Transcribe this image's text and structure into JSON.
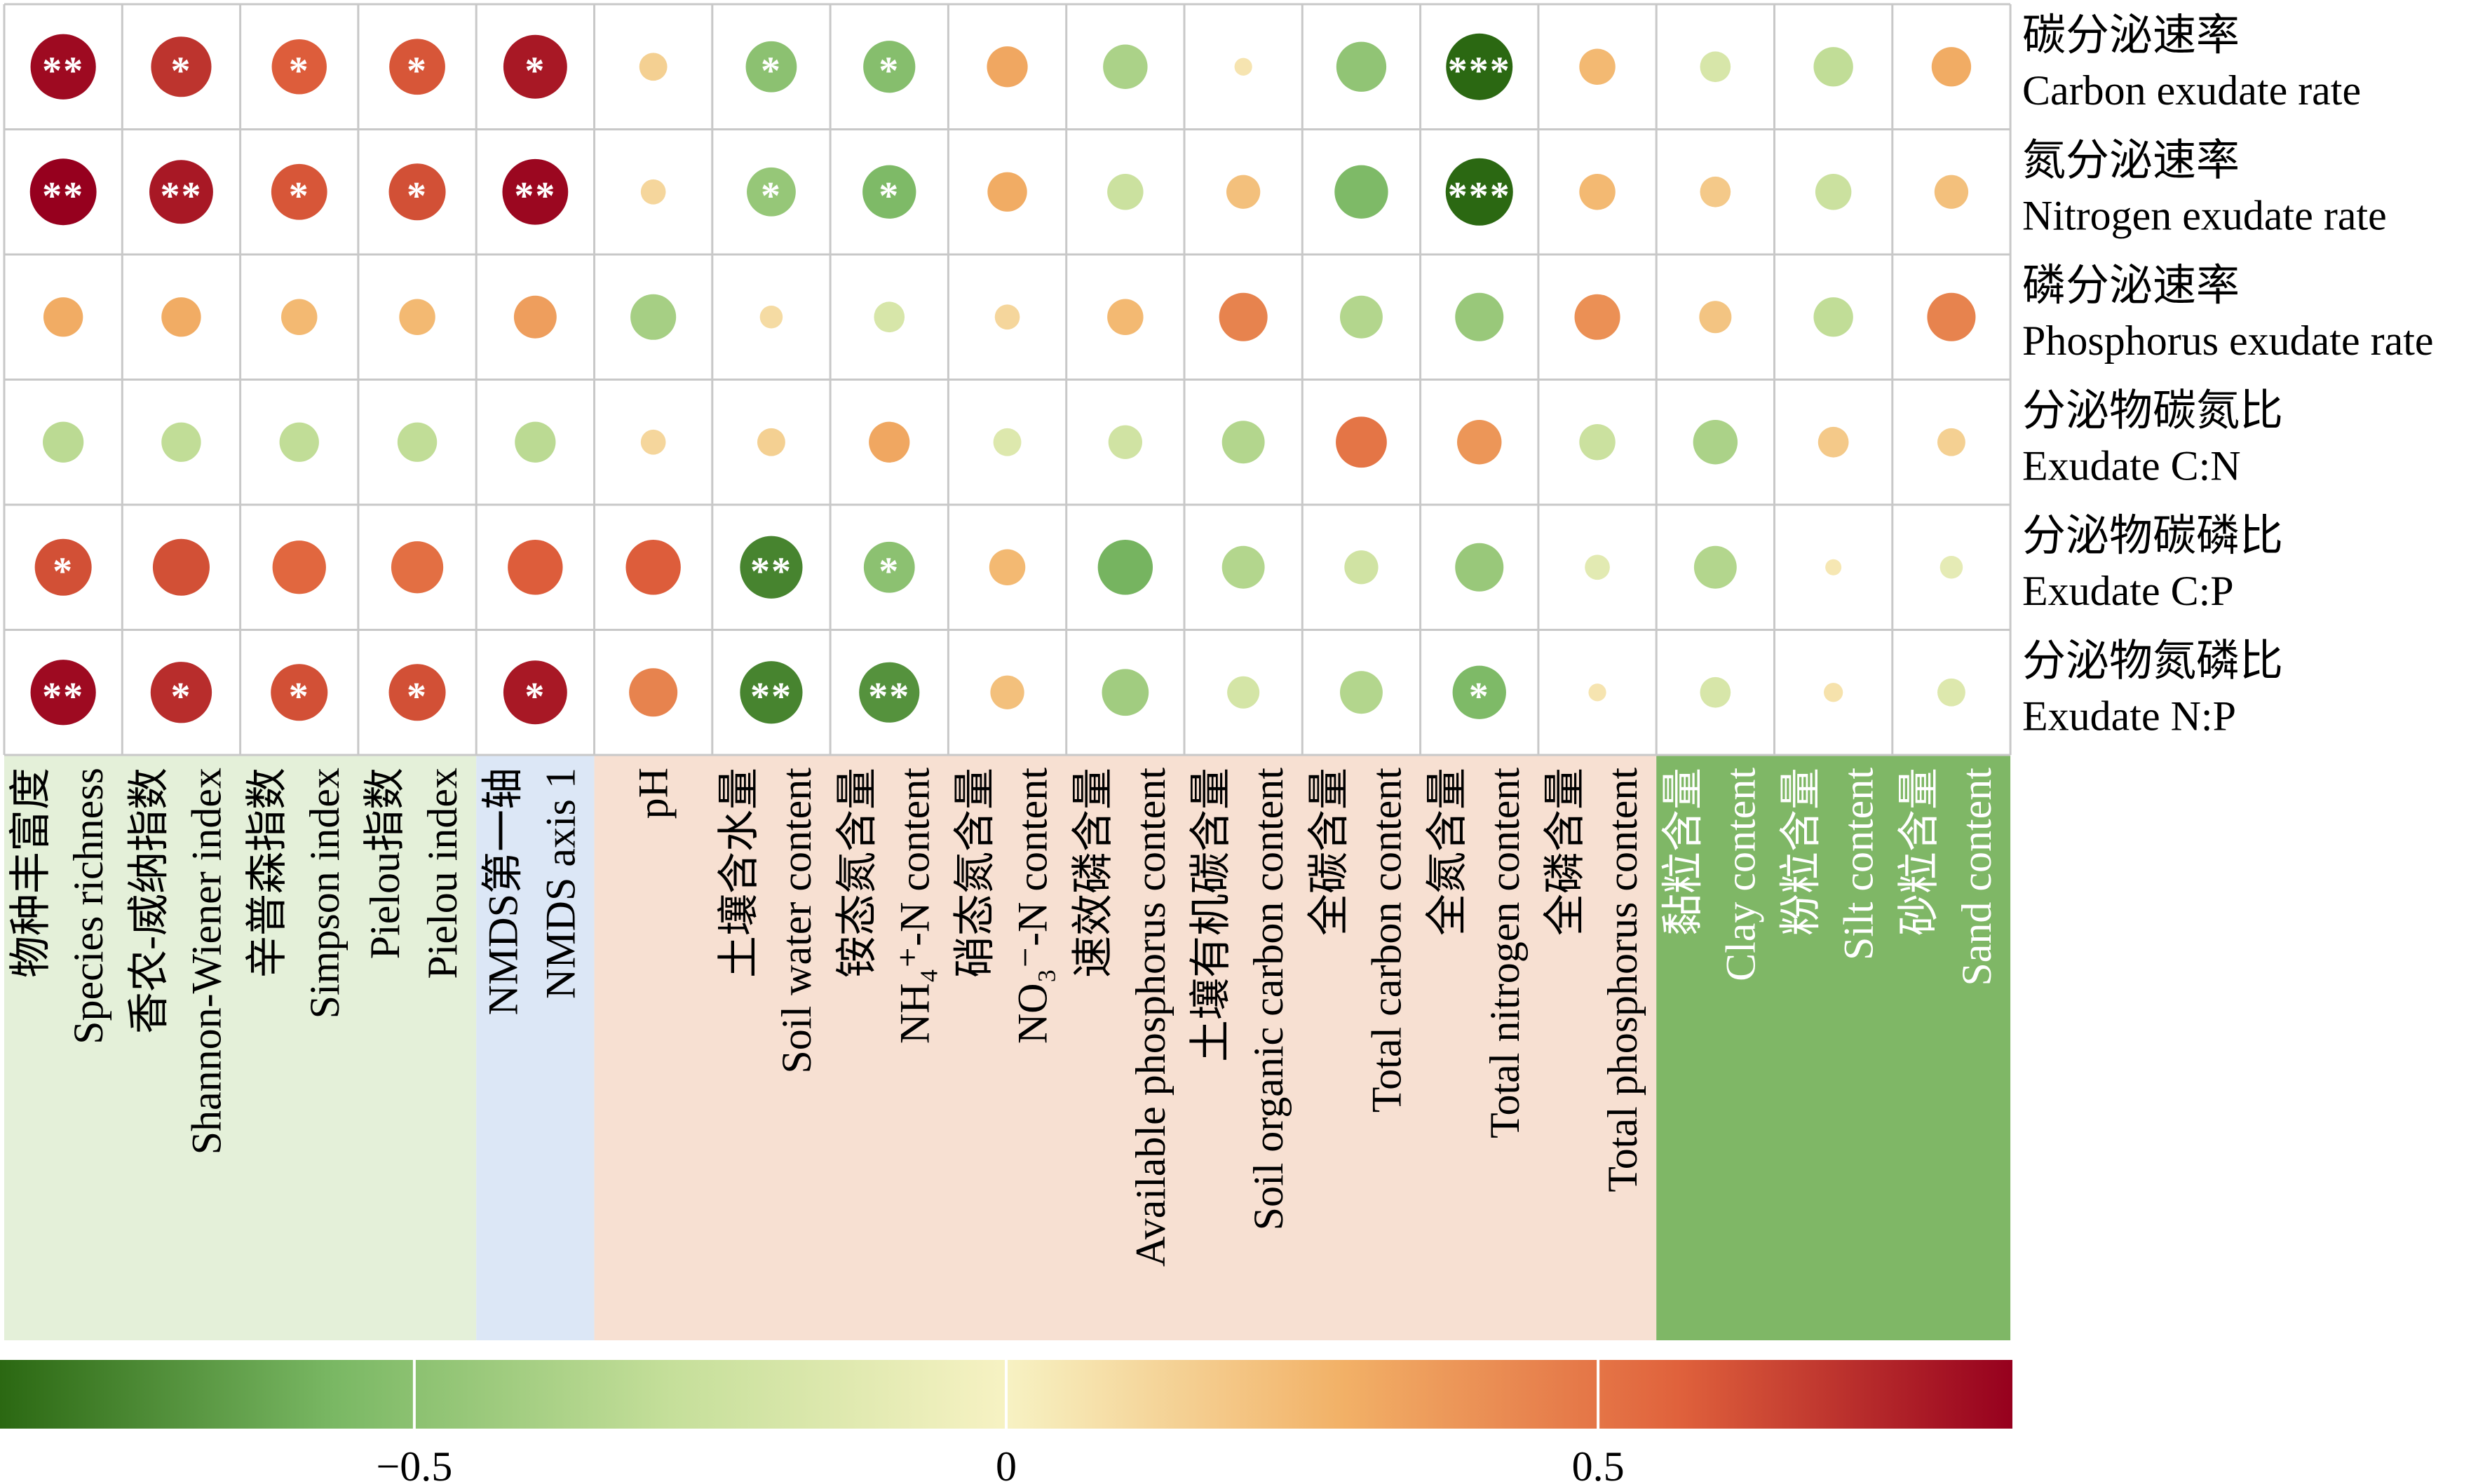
{
  "chart_data": {
    "type": "heatmap",
    "title": "",
    "value_range": [
      -0.85,
      0.85
    ],
    "rows": [
      {
        "zh": "碳分泌速率",
        "en": "Carbon exudate rate"
      },
      {
        "zh": "氮分泌速率",
        "en": "Nitrogen exudate rate"
      },
      {
        "zh": "磷分泌速率",
        "en": "Phosphorus exudate rate"
      },
      {
        "zh": "分泌物碳氮比",
        "en": "Exudate C:N"
      },
      {
        "zh": "分泌物碳磷比",
        "en": "Exudate C:P"
      },
      {
        "zh": "分泌物氮磷比",
        "en": "Exudate N:P"
      }
    ],
    "columns": [
      {
        "zh": "物种丰富度",
        "en": "Species richness",
        "group": "diversity"
      },
      {
        "zh": "香农-威纳指数",
        "en": "Shannon-Wiener index",
        "group": "diversity"
      },
      {
        "zh": "辛普森指数",
        "en": "Simpson index",
        "group": "diversity"
      },
      {
        "zh": "Pielou指数",
        "en": "Pielou index",
        "group": "diversity"
      },
      {
        "zh": "NMDS第一轴",
        "en": "NMDS axis 1",
        "group": "nmds"
      },
      {
        "zh": "",
        "en": "pH",
        "group": "soil"
      },
      {
        "zh": "土壤含水量",
        "en": "Soil water content",
        "group": "soil"
      },
      {
        "zh": "铵态氮含量",
        "en": "NH₄⁺-N content",
        "group": "soil"
      },
      {
        "zh": "硝态氮含量",
        "en": "NO₃⁻-N content",
        "group": "soil"
      },
      {
        "zh": "速效磷含量",
        "en": "Available phosphorus content",
        "group": "soil"
      },
      {
        "zh": "土壤有机碳含量",
        "en": "Soil organic carbon content",
        "group": "soil"
      },
      {
        "zh": "全碳含量",
        "en": "Total carbon content",
        "group": "soil"
      },
      {
        "zh": "全氮含量",
        "en": "Total nitrogen content",
        "group": "soil"
      },
      {
        "zh": "全磷含量",
        "en": "Total phosphorus content",
        "group": "soil"
      },
      {
        "zh": "黏粒含量",
        "en": "Clay content",
        "group": "texture"
      },
      {
        "zh": "粉粒含量",
        "en": "Silt content",
        "group": "texture"
      },
      {
        "zh": "砂粒含量",
        "en": "Sand content",
        "group": "texture"
      }
    ],
    "values": [
      [
        0.82,
        0.7,
        0.58,
        0.6,
        0.78,
        0.15,
        -0.5,
        -0.52,
        0.32,
        -0.38,
        0.06,
        -0.48,
        -0.85,
        0.25,
        -0.18,
        -0.3,
        0.3
      ],
      [
        0.85,
        0.78,
        0.6,
        0.62,
        0.83,
        0.12,
        -0.46,
        -0.55,
        0.3,
        -0.25,
        0.22,
        -0.55,
        -0.87,
        0.25,
        0.18,
        -0.25,
        0.22
      ],
      [
        0.3,
        0.3,
        0.25,
        0.25,
        0.35,
        -0.4,
        0.1,
        -0.18,
        0.12,
        0.25,
        0.45,
        -0.35,
        -0.45,
        0.4,
        0.2,
        -0.3,
        0.45
      ],
      [
        -0.32,
        -0.3,
        -0.3,
        -0.3,
        -0.32,
        0.12,
        0.15,
        0.32,
        -0.15,
        -0.22,
        -0.35,
        0.5,
        0.38,
        -0.25,
        -0.38,
        0.18,
        0.15
      ],
      [
        0.62,
        0.62,
        0.55,
        0.52,
        0.58,
        0.58,
        -0.75,
        -0.5,
        0.25,
        -0.58,
        -0.35,
        -0.22,
        -0.45,
        -0.12,
        -0.35,
        0.05,
        -0.1
      ],
      [
        0.82,
        0.72,
        0.62,
        0.62,
        0.78,
        0.45,
        -0.75,
        -0.7,
        0.22,
        -0.42,
        -0.2,
        -0.35,
        -0.55,
        0.06,
        -0.18,
        0.07,
        -0.15
      ]
    ],
    "significance": [
      [
        "**",
        "*",
        "*",
        "*",
        "*",
        "",
        "*",
        "*",
        "",
        "",
        "",
        "",
        "***",
        "",
        "",
        "",
        ""
      ],
      [
        "**",
        "**",
        "*",
        "*",
        "**",
        "",
        "*",
        "*",
        "",
        "",
        "",
        "",
        "***",
        "",
        "",
        "",
        ""
      ],
      [
        "",
        "",
        "",
        "",
        "",
        "",
        "",
        "",
        "",
        "",
        "",
        "",
        "",
        "",
        "",
        "",
        ""
      ],
      [
        "",
        "",
        "",
        "",
        "",
        "",
        "",
        "",
        "",
        "",
        "",
        "",
        "",
        "",
        "",
        "",
        ""
      ],
      [
        "*",
        "",
        "",
        "",
        "",
        "",
        "**",
        "*",
        "",
        "",
        "",
        "",
        "",
        "",
        "",
        "",
        ""
      ],
      [
        "**",
        "*",
        "*",
        "*",
        "*",
        "",
        "**",
        "**",
        "",
        "",
        "",
        "",
        "*",
        "",
        "",
        "",
        ""
      ]
    ],
    "colorbar": {
      "ticks": [
        -0.5,
        0,
        0.5
      ],
      "tick_labels": [
        "−0.5",
        "0",
        "0.5"
      ],
      "stops": [
        "#2b6812",
        "#7ab864",
        "#c5df9a",
        "#f7f2c3",
        "#f2b167",
        "#e0623c",
        "#96001e"
      ]
    },
    "group_colors": {
      "diversity": "#e4f0d9",
      "nmds": "#dce7f6",
      "soil": "#f7e0d2",
      "texture": "#7fb766"
    },
    "group_text_colors": {
      "diversity": "#000000",
      "nmds": "#000000",
      "soil": "#000000",
      "texture": "#ffffff"
    },
    "grid_color": "#c8c8c8"
  }
}
